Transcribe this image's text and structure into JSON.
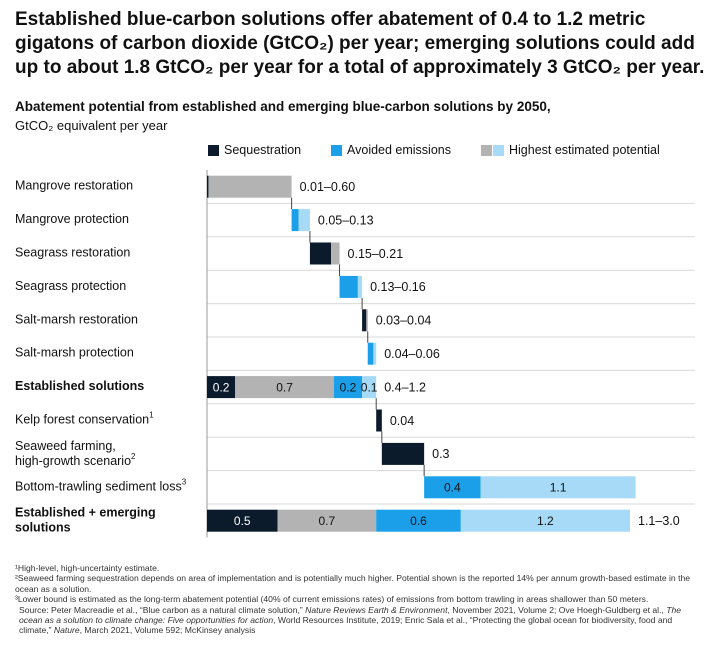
{
  "headline": "Established blue-carbon solutions offer abatement of 0.4 to 1.2 metric gigatons of carbon dioxide (GtCO₂) per year; emerging solutions could add up to about 1.8 GtCO₂ per year for a total of approximately 3 GtCO₂ per year.",
  "subtitle": "Abatement potential from established and emerging blue-carbon solutions by 2050,",
  "unit": "GtCO₂ equivalent per year",
  "legend": {
    "sequestration": "Sequestration",
    "avoided": "Avoided emissions",
    "highest": "Highest estimated potential"
  },
  "colors": {
    "sequestration": "#0b1b2b",
    "avoided": "#1a9fe8",
    "highest_gray": "#b3b3b3",
    "highest_light": "#a6daf7",
    "grid": "#d9d9d9"
  },
  "chart_data": {
    "type": "bar",
    "subtype": "waterfall",
    "unit": "GtCO₂ equivalent per year",
    "rows": [
      {
        "label": "Mangrove restoration",
        "range": "0.01–0.60",
        "segments": [
          {
            "kind": "sequestration",
            "value": 0.01
          },
          {
            "kind": "highest_gray",
            "value": 0.59
          }
        ]
      },
      {
        "label": "Mangrove protection",
        "range": "0.05–0.13",
        "segments": [
          {
            "kind": "avoided",
            "value": 0.05
          },
          {
            "kind": "highest_light",
            "value": 0.08
          }
        ]
      },
      {
        "label": "Seagrass restoration",
        "range": "0.15–0.21",
        "segments": [
          {
            "kind": "sequestration",
            "value": 0.15
          },
          {
            "kind": "highest_gray",
            "value": 0.06
          }
        ]
      },
      {
        "label": "Seagrass protection",
        "range": "0.13–0.16",
        "segments": [
          {
            "kind": "avoided",
            "value": 0.13
          },
          {
            "kind": "highest_light",
            "value": 0.03
          }
        ]
      },
      {
        "label": "Salt-marsh restoration",
        "range": "0.03–0.04",
        "segments": [
          {
            "kind": "sequestration",
            "value": 0.03
          },
          {
            "kind": "highest_gray",
            "value": 0.01
          }
        ]
      },
      {
        "label": "Salt-marsh protection",
        "range": "0.04–0.06",
        "segments": [
          {
            "kind": "avoided",
            "value": 0.04
          },
          {
            "kind": "highest_light",
            "value": 0.02
          }
        ]
      },
      {
        "label": "Established solutions",
        "range": "0.4–1.2",
        "bold": true,
        "segments": [
          {
            "kind": "sequestration",
            "value": 0.2,
            "label": "0.2"
          },
          {
            "kind": "highest_gray",
            "value": 0.7,
            "label": "0.7"
          },
          {
            "kind": "avoided",
            "value": 0.2,
            "label": "0.2"
          },
          {
            "kind": "highest_light",
            "value": 0.1,
            "label": "0.1"
          }
        ]
      },
      {
        "label": "Kelp forest conservation",
        "sup": "1",
        "range": "0.04",
        "segments": [
          {
            "kind": "sequestration",
            "value": 0.04
          }
        ]
      },
      {
        "label": "Seaweed farming,",
        "label2": "high-growth scenario",
        "sup": "2",
        "range": "0.3",
        "segments": [
          {
            "kind": "sequestration",
            "value": 0.3
          }
        ]
      },
      {
        "label": "Bottom-trawling sediment loss",
        "sup": "3",
        "range": "",
        "segments": [
          {
            "kind": "avoided",
            "value": 0.4,
            "label": "0.4"
          },
          {
            "kind": "highest_light",
            "value": 1.1,
            "label": "1.1"
          }
        ]
      },
      {
        "label": "Established + emerging",
        "label2": "solutions",
        "range": "1.1–3.0",
        "bold": true,
        "total": true,
        "segments": [
          {
            "kind": "sequestration",
            "value": 0.5,
            "label": "0.5"
          },
          {
            "kind": "highest_gray",
            "value": 0.7,
            "label": "0.7"
          },
          {
            "kind": "avoided",
            "value": 0.6,
            "label": "0.6"
          },
          {
            "kind": "highest_light",
            "value": 1.2,
            "label": "1.2"
          }
        ]
      }
    ]
  },
  "footnotes": [
    "¹High-level, high-uncertainty estimate.",
    "²Seaweed farming sequestration depends on area of implementation and is potentially much higher. Potential shown is the reported 14% per annum growth-based estimate in the ocean as a solution.",
    "³Lower bound is estimated as the long-term abatement potential (40% of current emissions rates) of emissions from bottom trawling in areas shallower than 50 meters."
  ],
  "source": {
    "p1": "Source: Peter Macreadie et al., “Blue carbon as a natural climate solution,” ",
    "i1": "Nature Reviews Earth & Environment",
    "p2": ", November 2021, Volume 2; Ove Hoegh-Guldberg et al., ",
    "i2": "The ocean as a solution to climate change: Five opportunities for action",
    "p3": ", World Resources Institute, 2019; Enric Sala et al., “Protecting the global ocean for biodiversity, food and climate,” ",
    "i3": "Nature",
    "p4": ", March 2021, Volume 592; McKinsey analysis"
  }
}
